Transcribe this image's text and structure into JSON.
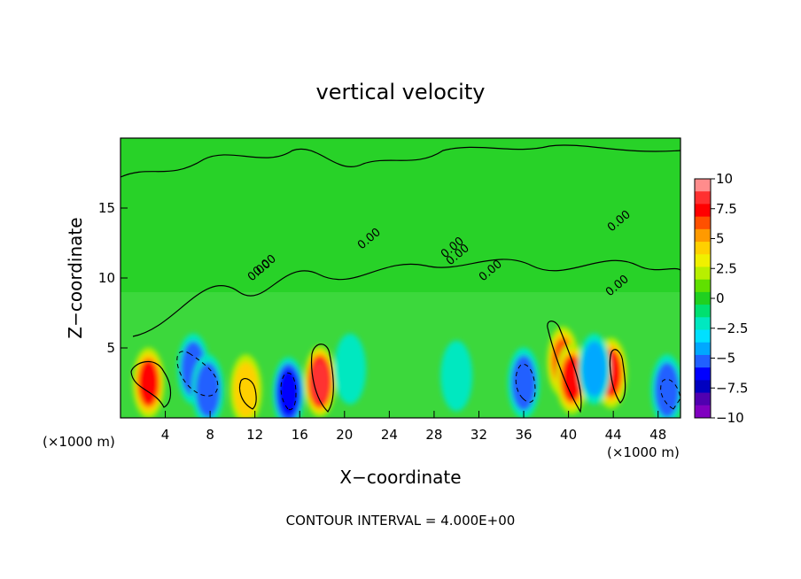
{
  "chart_data": {
    "type": "heatmap",
    "title": "vertical velocity",
    "xlabel": "X−coordinate",
    "ylabel": "Z−coordinate",
    "x_unit_left": "(×1000 m)",
    "x_unit_right": "(×1000 m)",
    "xlim": [
      0,
      50
    ],
    "ylim": [
      0,
      20
    ],
    "x_ticks": [
      4,
      8,
      12,
      16,
      20,
      24,
      28,
      32,
      36,
      40,
      44,
      48
    ],
    "y_ticks": [
      5,
      10,
      15
    ],
    "colorbar": {
      "ticks": [
        "10",
        "7.5",
        "5",
        "2.5",
        "0",
        "−2.5",
        "−5",
        "−7.5",
        "−10"
      ],
      "range": [
        -10,
        10
      ],
      "colors": [
        "#ff8c8c",
        "#ff3030",
        "#ff0000",
        "#ff5000",
        "#ff9a00",
        "#ffd000",
        "#f0f000",
        "#b8ef00",
        "#60e000",
        "#20d020",
        "#00e070",
        "#00e8c0",
        "#00e0ff",
        "#00a8ff",
        "#2060ff",
        "#0000ff",
        "#0000c0",
        "#5000b0",
        "#8000c0"
      ]
    },
    "contour_labels": [
      "0.00",
      "0.00",
      "0.00",
      "0.00",
      "0.00",
      "0.00",
      "0.00",
      "0.00"
    ],
    "features": [
      {
        "x": 2.5,
        "z": 2.5,
        "w": 8
      },
      {
        "x": 6.5,
        "z": 3.5,
        "w": -6
      },
      {
        "x": 7.8,
        "z": 2.0,
        "w": -5
      },
      {
        "x": 11.2,
        "z": 2.0,
        "w": 5
      },
      {
        "x": 15.0,
        "z": 1.8,
        "w": -7
      },
      {
        "x": 17.8,
        "z": 2.6,
        "w": 9
      },
      {
        "x": 20.5,
        "z": 3.5,
        "w": -2.5
      },
      {
        "x": 30.0,
        "z": 3.0,
        "w": -2
      },
      {
        "x": 36.0,
        "z": 2.5,
        "w": -6
      },
      {
        "x": 39.5,
        "z": 4.0,
        "w": 7
      },
      {
        "x": 40.3,
        "z": 2.8,
        "w": 8
      },
      {
        "x": 43.8,
        "z": 3.2,
        "w": 8
      },
      {
        "x": 42.3,
        "z": 3.5,
        "w": -4
      },
      {
        "x": 48.8,
        "z": 2.0,
        "w": -5
      }
    ]
  },
  "footer": {
    "contour_interval": "CONTOUR INTERVAL = 4.000E+00"
  }
}
